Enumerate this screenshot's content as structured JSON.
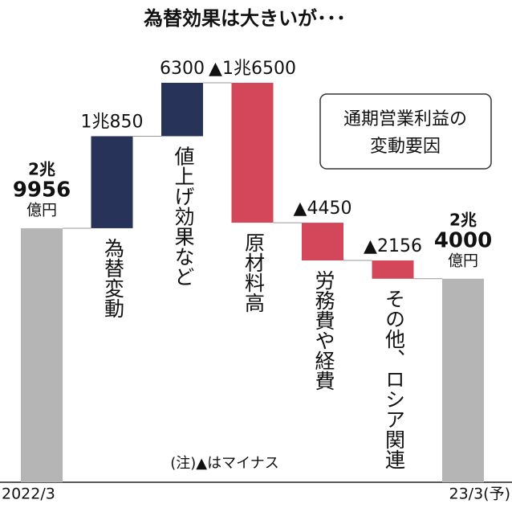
{
  "chart_data": {
    "type": "waterfall",
    "title": "為替効果は大きいが･･･",
    "categories": [
      "2022/3",
      "為替変動",
      "値上げ効果など",
      "原材料高",
      "労務費や経費",
      "その他、ロシア関連",
      "23/3(予)"
    ],
    "values": [
      29956,
      10850,
      6300,
      -16500,
      -4450,
      -2156,
      24000
    ],
    "value_labels": [
      [
        "2兆",
        "9956",
        "億円"
      ],
      "1兆850",
      "6300",
      "▲1兆6500",
      "▲4450",
      "▲2156",
      [
        "2兆",
        "4000",
        "億円"
      ]
    ],
    "total_color": "#b5b5b5",
    "increase_color": "#283359",
    "decrease_color": "#d4465a",
    "annotation": [
      "通期営業利益の",
      "変動要因"
    ],
    "note": "(注)▲はマイナス"
  }
}
